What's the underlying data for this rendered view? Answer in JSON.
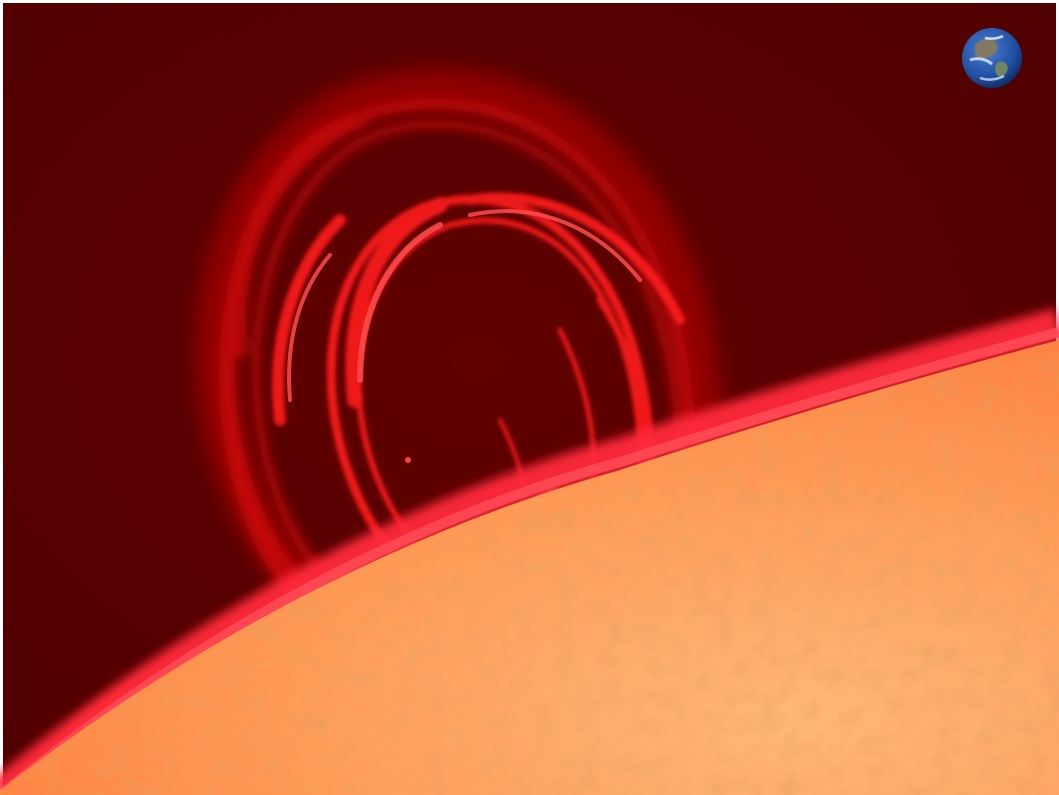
{
  "image": {
    "subject_icons": [
      "solar-prominence-icon",
      "earth-icon",
      "sun-surface-icon"
    ],
    "colors": {
      "space_background": "#5a0000",
      "prominence": "#ff1a1a",
      "prominence_glow": "#ff4d4d",
      "chromosphere_edge": "#ff2a3a",
      "photosphere_bright": "#ffb070",
      "photosphere_mid": "#ff8a45",
      "photosphere_dark": "#f06a30",
      "earth_ocean": "#1f4fa0",
      "earth_land": "#8a7a5a",
      "earth_cloud": "#ffffff",
      "frame_border": "#ffffff"
    }
  }
}
